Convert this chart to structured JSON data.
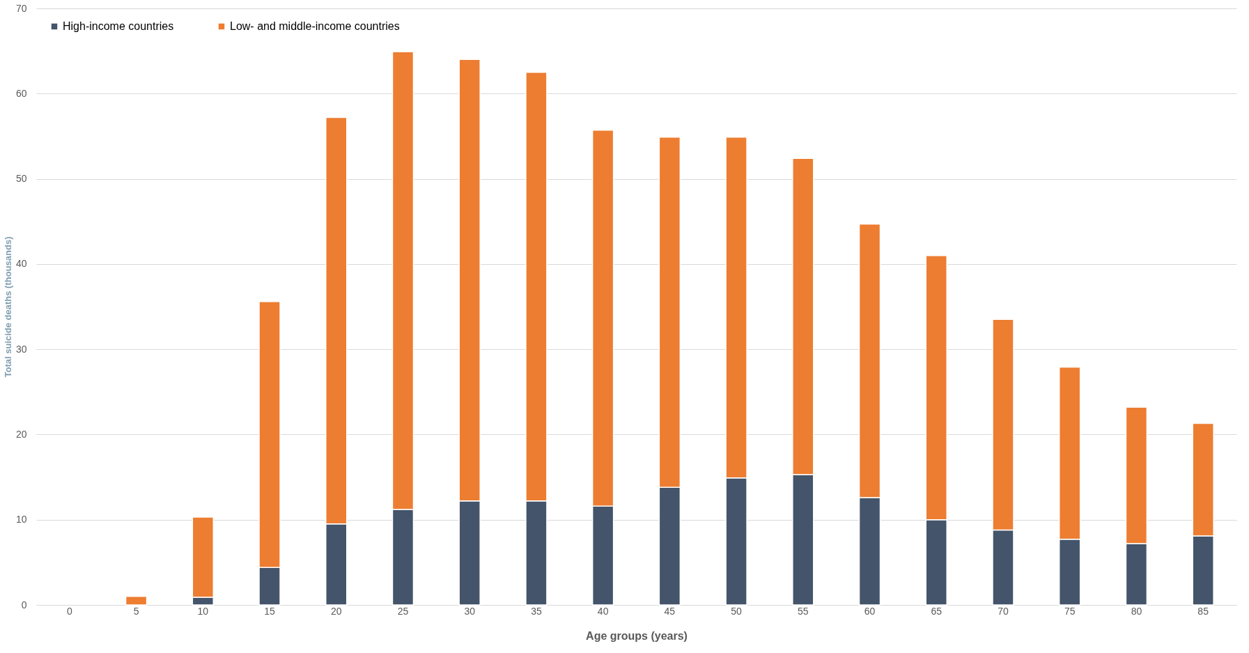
{
  "chart_data": {
    "type": "bar",
    "stacked": true,
    "xlabel": "Age groups (years)",
    "ylabel": "Total suicide deaths (thousands)",
    "categories": [
      "0",
      "5",
      "10",
      "15",
      "20",
      "25",
      "30",
      "35",
      "40",
      "45",
      "50",
      "55",
      "60",
      "65",
      "70",
      "75",
      "80",
      "85"
    ],
    "series": [
      {
        "name": "High-income countries",
        "color": "#44546a",
        "values": [
          0,
          null,
          0.9,
          4.4,
          9.5,
          11.2,
          12.2,
          12.2,
          11.6,
          13.8,
          14.9,
          15.3,
          12.6,
          10.0,
          8.8,
          7.7,
          7.2,
          8.1
        ]
      },
      {
        "name": "Low- and middle-income countries",
        "color": "#ed7d31",
        "values": [
          0,
          1.0,
          9.4,
          31.2,
          47.7,
          53.7,
          51.8,
          50.3,
          44.1,
          41.1,
          40.0,
          37.1,
          32.1,
          31.0,
          24.7,
          20.2,
          16.0,
          13.2
        ]
      }
    ],
    "ylim": [
      0,
      70
    ],
    "yticks": [
      0,
      10,
      20,
      30,
      40,
      50,
      60,
      70
    ],
    "grid": "y",
    "legend": "top left"
  }
}
